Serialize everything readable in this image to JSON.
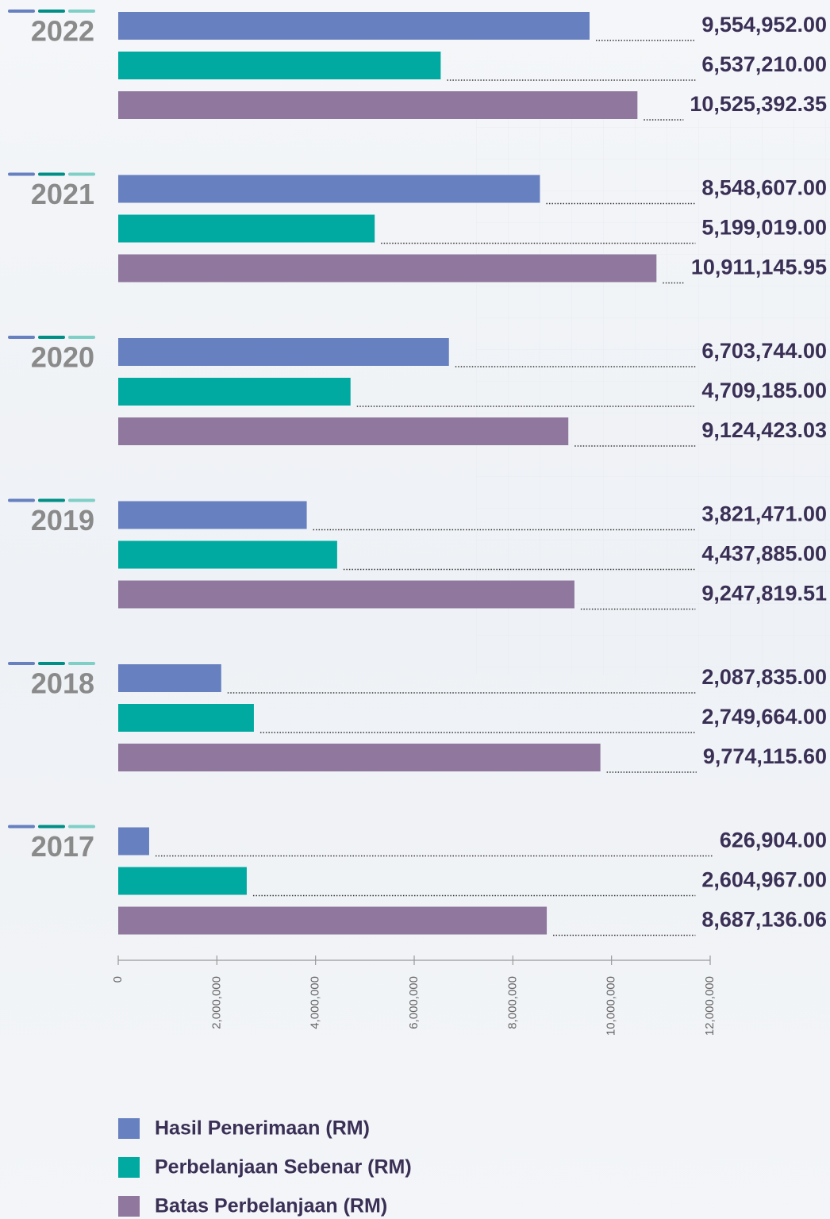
{
  "chart_data": {
    "type": "bar",
    "orientation": "horizontal",
    "categories": [
      "2022",
      "2021",
      "2020",
      "2019",
      "2018",
      "2017"
    ],
    "series": [
      {
        "name": "Hasil Penerimaan (RM)",
        "color": "#6680c0",
        "values": [
          9554952.0,
          8548607.0,
          6703744.0,
          3821471.0,
          2087835.0,
          626904.0
        ],
        "value_labels": [
          "9,554,952.00",
          "8,548,607.00",
          "6,703,744.00",
          "3,821,471.00",
          "2,087,835.00",
          "626,904.00"
        ]
      },
      {
        "name": "Perbelanjaan Sebenar (RM)",
        "color": "#00aaa0",
        "values": [
          6537210.0,
          5199019.0,
          4709185.0,
          4437885.0,
          2749664.0,
          2604967.0
        ],
        "value_labels": [
          "6,537,210.00",
          "5,199,019.00",
          "4,709,185.00",
          "4,437,885.00",
          "2,749,664.00",
          "2,604,967.00"
        ]
      },
      {
        "name": "Batas Perbelanjaan (RM)",
        "color": "#8f779e",
        "values": [
          10525392.35,
          10911145.95,
          9124423.03,
          9247819.51,
          9774115.6,
          8687136.06
        ],
        "value_labels": [
          "10,525,392.35",
          "10,911,145.95",
          "9,124,423.03",
          "9,247,819.51",
          "9,774,115.60",
          "8,687,136.06"
        ]
      }
    ],
    "xlim": [
      0,
      12000000
    ],
    "xticks": [
      0,
      {
        "value": 2000000,
        "label": "2,000,000"
      },
      {
        "value": 4000000,
        "label": "4,000,000"
      },
      {
        "value": 6000000,
        "label": "6,000,000"
      },
      {
        "value": 8000000,
        "label": "8,000,000"
      },
      {
        "value": 10000000,
        "label": "10,000,000"
      },
      {
        "value": 12000000,
        "label": "12,000,000"
      }
    ],
    "legend": "bottom-left"
  }
}
